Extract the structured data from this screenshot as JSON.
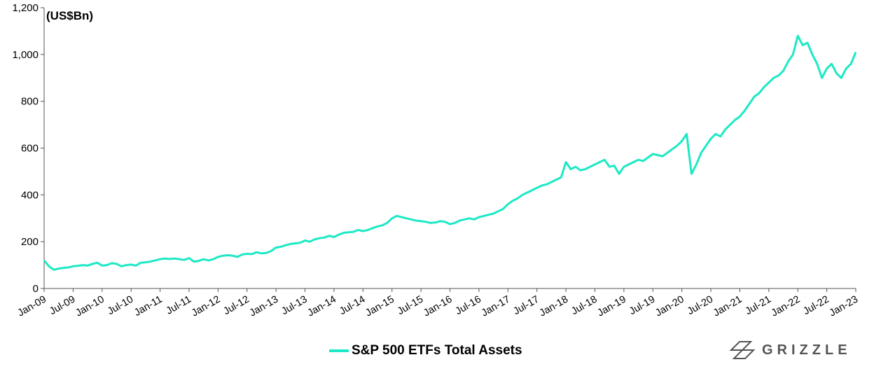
{
  "colors": {
    "series": "#1de9c5",
    "axis": "#555555"
  },
  "chart_data": {
    "type": "line",
    "unit_label": "(US$Bn)",
    "ylim": [
      0,
      1200
    ],
    "yticks": [
      0,
      200,
      400,
      600,
      800,
      "1,000",
      "1,200"
    ],
    "ytick_values": [
      0,
      200,
      400,
      600,
      800,
      1000,
      1200
    ],
    "xtick_labels": [
      "Jan-09",
      "Jul-09",
      "Jan-10",
      "Jul-10",
      "Jan-11",
      "Jul-11",
      "Jan-12",
      "Jul-12",
      "Jan-13",
      "Jul-13",
      "Jan-14",
      "Jul-14",
      "Jan-15",
      "Jul-15",
      "Jan-16",
      "Jul-16",
      "Jan-17",
      "Jul-17",
      "Jan-18",
      "Jul-18",
      "Jan-19",
      "Jul-19",
      "Jan-20",
      "Jul-20",
      "Jan-21",
      "Jul-21",
      "Jan-22",
      "Jul-22",
      "Jan-23"
    ],
    "grid": false,
    "legend": "bottom-center",
    "series": [
      {
        "name": "S&P 500 ETFs Total Assets",
        "x": [
          "2009-01",
          "2009-02",
          "2009-03",
          "2009-04",
          "2009-05",
          "2009-06",
          "2009-07",
          "2009-08",
          "2009-09",
          "2009-10",
          "2009-11",
          "2009-12",
          "2010-01",
          "2010-02",
          "2010-03",
          "2010-04",
          "2010-05",
          "2010-06",
          "2010-07",
          "2010-08",
          "2010-09",
          "2010-10",
          "2010-11",
          "2010-12",
          "2011-01",
          "2011-02",
          "2011-03",
          "2011-04",
          "2011-05",
          "2011-06",
          "2011-07",
          "2011-08",
          "2011-09",
          "2011-10",
          "2011-11",
          "2011-12",
          "2012-01",
          "2012-02",
          "2012-03",
          "2012-04",
          "2012-05",
          "2012-06",
          "2012-07",
          "2012-08",
          "2012-09",
          "2012-10",
          "2012-11",
          "2012-12",
          "2013-01",
          "2013-02",
          "2013-03",
          "2013-04",
          "2013-05",
          "2013-06",
          "2013-07",
          "2013-08",
          "2013-09",
          "2013-10",
          "2013-11",
          "2013-12",
          "2014-01",
          "2014-02",
          "2014-03",
          "2014-04",
          "2014-05",
          "2014-06",
          "2014-07",
          "2014-08",
          "2014-09",
          "2014-10",
          "2014-11",
          "2014-12",
          "2015-01",
          "2015-02",
          "2015-03",
          "2015-04",
          "2015-05",
          "2015-06",
          "2015-07",
          "2015-08",
          "2015-09",
          "2015-10",
          "2015-11",
          "2015-12",
          "2016-01",
          "2016-02",
          "2016-03",
          "2016-04",
          "2016-05",
          "2016-06",
          "2016-07",
          "2016-08",
          "2016-09",
          "2016-10",
          "2016-11",
          "2016-12",
          "2017-01",
          "2017-02",
          "2017-03",
          "2017-04",
          "2017-05",
          "2017-06",
          "2017-07",
          "2017-08",
          "2017-09",
          "2017-10",
          "2017-11",
          "2017-12",
          "2018-01",
          "2018-02",
          "2018-03",
          "2018-04",
          "2018-05",
          "2018-06",
          "2018-07",
          "2018-08",
          "2018-09",
          "2018-10",
          "2018-11",
          "2018-12",
          "2019-01",
          "2019-02",
          "2019-03",
          "2019-04",
          "2019-05",
          "2019-06",
          "2019-07",
          "2019-08",
          "2019-09",
          "2019-10",
          "2019-11",
          "2019-12",
          "2020-01",
          "2020-02",
          "2020-03",
          "2020-04",
          "2020-05",
          "2020-06",
          "2020-07",
          "2020-08",
          "2020-09",
          "2020-10",
          "2020-11",
          "2020-12",
          "2021-01",
          "2021-02",
          "2021-03",
          "2021-04",
          "2021-05",
          "2021-06",
          "2021-07",
          "2021-08",
          "2021-09",
          "2021-10",
          "2021-11",
          "2021-12",
          "2022-01",
          "2022-02",
          "2022-03",
          "2022-04",
          "2022-05",
          "2022-06",
          "2022-07",
          "2022-08",
          "2022-09",
          "2022-10",
          "2022-11",
          "2022-12",
          "2023-01"
        ],
        "values": [
          120,
          95,
          80,
          85,
          88,
          90,
          95,
          97,
          100,
          98,
          105,
          110,
          98,
          100,
          108,
          105,
          95,
          100,
          102,
          98,
          110,
          112,
          115,
          120,
          125,
          128,
          126,
          128,
          125,
          122,
          130,
          115,
          118,
          125,
          120,
          125,
          135,
          140,
          142,
          140,
          135,
          145,
          148,
          147,
          155,
          150,
          152,
          160,
          175,
          178,
          185,
          190,
          193,
          195,
          205,
          200,
          210,
          215,
          218,
          225,
          220,
          230,
          238,
          240,
          242,
          250,
          245,
          250,
          258,
          265,
          270,
          280,
          300,
          310,
          305,
          300,
          295,
          290,
          288,
          285,
          280,
          282,
          288,
          285,
          275,
          280,
          290,
          295,
          300,
          295,
          305,
          310,
          315,
          320,
          330,
          340,
          360,
          375,
          385,
          400,
          410,
          420,
          430,
          440,
          445,
          455,
          465,
          475,
          540,
          510,
          520,
          505,
          510,
          520,
          530,
          540,
          550,
          520,
          525,
          490,
          520,
          530,
          540,
          550,
          545,
          560,
          575,
          570,
          565,
          580,
          595,
          610,
          630,
          660,
          490,
          530,
          580,
          610,
          640,
          660,
          650,
          680,
          700,
          720,
          735,
          760,
          790,
          820,
          835,
          860,
          880,
          900,
          910,
          930,
          970,
          1000,
          1080,
          1040,
          1050,
          1000,
          960,
          900,
          940,
          960,
          920,
          900,
          940,
          960,
          1010
        ]
      }
    ]
  },
  "legend_label": "S&P 500 ETFs Total Assets",
  "brand": {
    "name": "GRIZZLE"
  }
}
